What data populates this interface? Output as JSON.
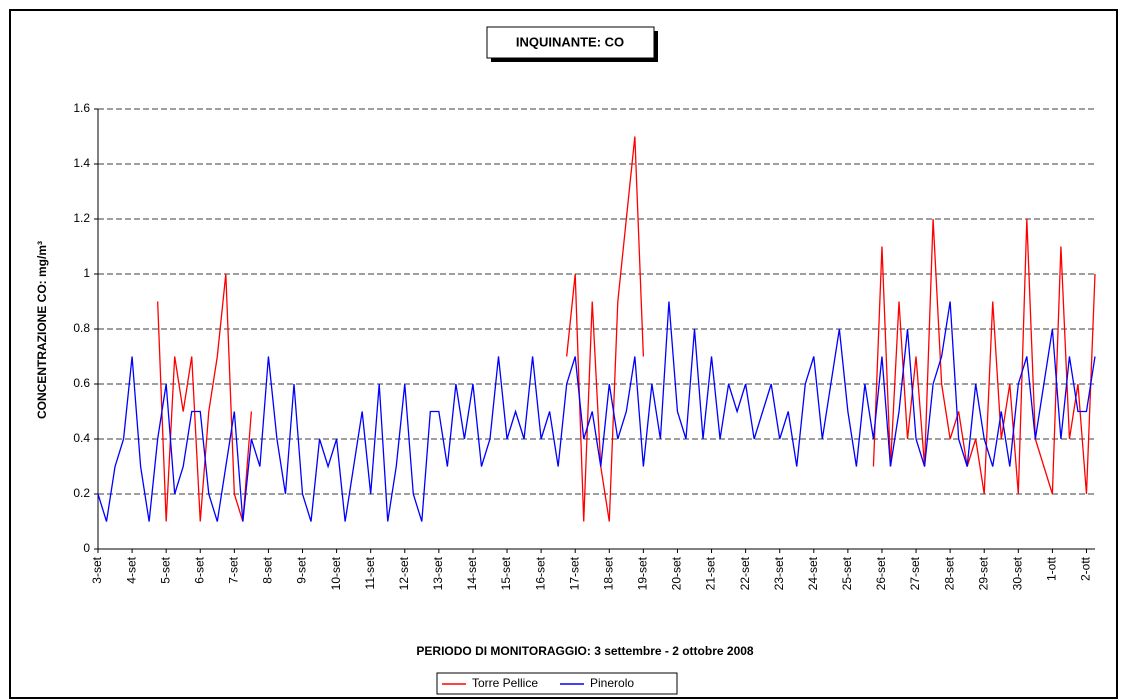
{
  "chart_data": {
    "type": "line",
    "title": "INQUINANTE: CO",
    "x_label": "PERIODO DI MONITORAGGIO: 3 settembre - 2 ottobre 2008",
    "y_label": "CONCENTRAZIONE CO: mg/m³",
    "categories": [
      "3-set",
      null,
      null,
      null,
      "4-set",
      null,
      null,
      null,
      "5-set",
      null,
      null,
      null,
      "6-set",
      null,
      null,
      null,
      "7-set",
      null,
      null,
      null,
      "8-set",
      null,
      null,
      null,
      "9-set",
      null,
      null,
      null,
      "10-set",
      null,
      null,
      null,
      "11-set",
      null,
      null,
      null,
      "12-set",
      null,
      null,
      null,
      "13-set",
      null,
      null,
      null,
      "14-set",
      null,
      null,
      null,
      "15-set",
      null,
      null,
      null,
      "16-set",
      null,
      null,
      null,
      "17-set",
      null,
      null,
      null,
      "18-set",
      null,
      null,
      null,
      "19-set",
      null,
      null,
      null,
      "20-set",
      null,
      null,
      null,
      "21-set",
      null,
      null,
      null,
      "22-set",
      null,
      null,
      null,
      "23-set",
      null,
      null,
      null,
      "24-set",
      null,
      null,
      null,
      "25-set",
      null,
      null,
      null,
      "26-set",
      null,
      null,
      null,
      "27-set",
      null,
      null,
      null,
      "28-set",
      null,
      null,
      null,
      "29-set",
      null,
      null,
      null,
      "30-set",
      null,
      null,
      null,
      "1-ott",
      null,
      null,
      null,
      "2-ott",
      null
    ],
    "series": [
      {
        "name": "Torre Pellice",
        "color": "#ff0000",
        "values": [
          null,
          null,
          null,
          null,
          null,
          null,
          null,
          0.9,
          0.1,
          0.7,
          0.5,
          0.7,
          0.1,
          0.5,
          0.7,
          1.0,
          0.2,
          0.1,
          0.5,
          null,
          null,
          null,
          null,
          null,
          null,
          null,
          null,
          null,
          null,
          null,
          null,
          null,
          null,
          null,
          null,
          null,
          null,
          null,
          null,
          null,
          null,
          null,
          null,
          null,
          null,
          null,
          null,
          null,
          null,
          null,
          null,
          null,
          null,
          null,
          null,
          0.7,
          1.0,
          0.1,
          0.9,
          0.3,
          0.1,
          0.9,
          1.2,
          1.5,
          0.7,
          null,
          null,
          null,
          null,
          null,
          null,
          null,
          null,
          null,
          null,
          null,
          null,
          null,
          null,
          null,
          null,
          null,
          null,
          null,
          null,
          null,
          null,
          null,
          null,
          null,
          null,
          0.3,
          1.1,
          0.3,
          0.9,
          0.4,
          0.7,
          0.3,
          1.2,
          0.6,
          0.4,
          0.5,
          0.3,
          0.4,
          0.2,
          0.9,
          0.4,
          0.6,
          0.2,
          1.2,
          0.4,
          0.3,
          0.2,
          1.1,
          0.4,
          0.6,
          0.2,
          1.0
        ]
      },
      {
        "name": "Pinerolo",
        "color": "#0000ff",
        "values": [
          0.2,
          0.1,
          0.3,
          0.4,
          0.7,
          0.3,
          0.1,
          0.4,
          0.6,
          0.2,
          0.3,
          0.5,
          0.5,
          0.2,
          0.1,
          0.3,
          0.5,
          0.1,
          0.4,
          0.3,
          0.7,
          0.4,
          0.2,
          0.6,
          0.2,
          0.1,
          0.4,
          0.3,
          0.4,
          0.1,
          0.3,
          0.5,
          0.2,
          0.6,
          0.1,
          0.3,
          0.6,
          0.2,
          0.1,
          0.5,
          0.5,
          0.3,
          0.6,
          0.4,
          0.6,
          0.3,
          0.4,
          0.7,
          0.4,
          0.5,
          0.4,
          0.7,
          0.4,
          0.5,
          0.3,
          0.6,
          0.7,
          0.4,
          0.5,
          0.3,
          0.6,
          0.4,
          0.5,
          0.7,
          0.3,
          0.6,
          0.4,
          0.9,
          0.5,
          0.4,
          0.8,
          0.4,
          0.7,
          0.4,
          0.6,
          0.5,
          0.6,
          0.4,
          0.5,
          0.6,
          0.4,
          0.5,
          0.3,
          0.6,
          0.7,
          0.4,
          0.6,
          0.8,
          0.5,
          0.3,
          0.6,
          0.4,
          0.7,
          0.3,
          0.5,
          0.8,
          0.4,
          0.3,
          0.6,
          0.7,
          0.9,
          0.4,
          0.3,
          0.6,
          0.4,
          0.3,
          0.5,
          0.3,
          0.6,
          0.7,
          0.4,
          0.6,
          0.8,
          0.4,
          0.7,
          0.5,
          0.5,
          0.7
        ]
      }
    ],
    "ylim": [
      0,
      1.6
    ],
    "yticks": [
      0,
      0.2,
      0.4,
      0.6,
      0.8,
      1,
      1.2,
      1.4,
      1.6
    ],
    "grid": true
  }
}
